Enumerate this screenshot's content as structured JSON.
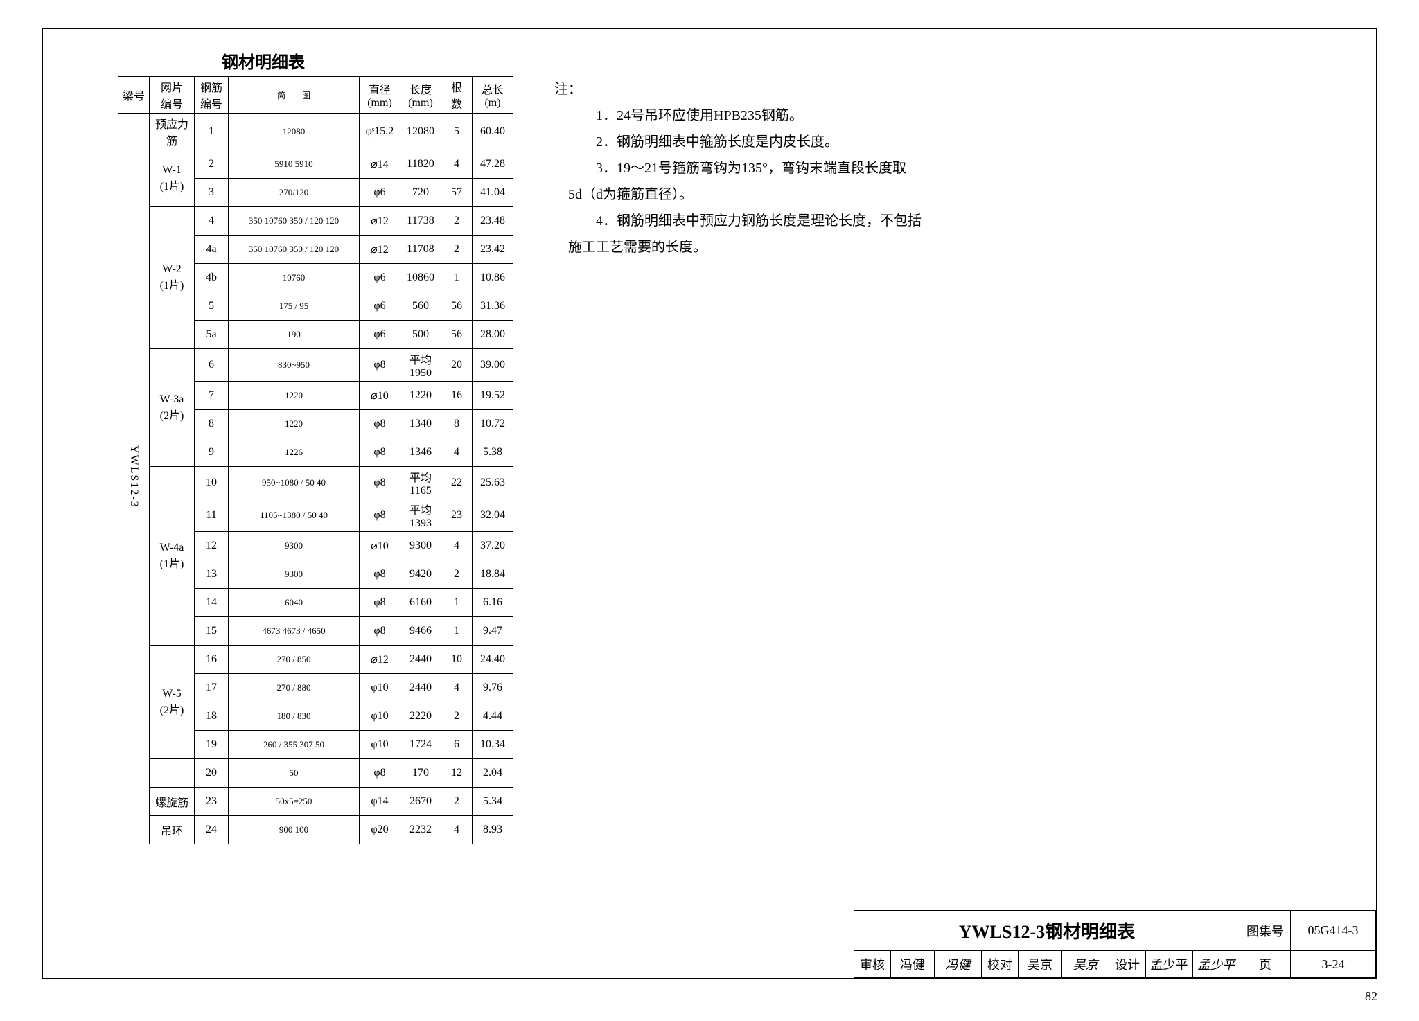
{
  "table_title": "钢材明细表",
  "beam_id": "YWLS12-3",
  "columns": {
    "beam": "梁号",
    "mesh": "网片\n编号",
    "bar": "钢筋\n编号",
    "sketch": "简　　图",
    "dia": "直径\n(mm)",
    "len": "长度\n(mm)",
    "qty": "根\n数",
    "total": "总长\n(m)"
  },
  "rows": [
    {
      "mesh": "预应力筋",
      "bar": "1",
      "sketch": "12080",
      "dia": "φˢ15.2",
      "len": "12080",
      "qty": "5",
      "total": "60.40"
    },
    {
      "mesh": "W-1\n(1片)",
      "mesh_rowspan": 2,
      "bar": "2",
      "sketch": "5910  5910",
      "dia": "⌀14",
      "len": "11820",
      "qty": "4",
      "total": "47.28"
    },
    {
      "bar": "3",
      "sketch": "270/120",
      "dia": "φ6",
      "len": "720",
      "qty": "57",
      "total": "41.04"
    },
    {
      "mesh": "W-2\n(1片)",
      "mesh_rowspan": 5,
      "bar": "4",
      "sketch": "350 10760 350 / 120 120",
      "dia": "⌀12",
      "len": "11738",
      "qty": "2",
      "total": "23.48"
    },
    {
      "bar": "4a",
      "sketch": "350 10760 350 / 120 120",
      "dia": "⌀12",
      "len": "11708",
      "qty": "2",
      "total": "23.42"
    },
    {
      "bar": "4b",
      "sketch": "10760",
      "dia": "φ6",
      "len": "10860",
      "qty": "1",
      "total": "10.86"
    },
    {
      "bar": "5",
      "sketch": "175 / 95",
      "dia": "φ6",
      "len": "560",
      "qty": "56",
      "total": "31.36"
    },
    {
      "bar": "5a",
      "sketch": "190",
      "dia": "φ6",
      "len": "500",
      "qty": "56",
      "total": "28.00"
    },
    {
      "mesh": "W-3a\n(2片)",
      "mesh_rowspan": 4,
      "bar": "6",
      "sketch": "830~950",
      "dia": "φ8",
      "len": "平均\n1950",
      "qty": "20",
      "total": "39.00"
    },
    {
      "bar": "7",
      "sketch": "1220",
      "dia": "⌀10",
      "len": "1220",
      "qty": "16",
      "total": "19.52"
    },
    {
      "bar": "8",
      "sketch": "1220",
      "dia": "φ8",
      "len": "1340",
      "qty": "8",
      "total": "10.72"
    },
    {
      "bar": "9",
      "sketch": "1226",
      "dia": "φ8",
      "len": "1346",
      "qty": "4",
      "total": "5.38"
    },
    {
      "mesh": "W-4a\n(1片)",
      "mesh_rowspan": 6,
      "bar": "10",
      "sketch": "950~1080 / 50 40",
      "dia": "φ8",
      "len": "平均\n1165",
      "qty": "22",
      "total": "25.63"
    },
    {
      "bar": "11",
      "sketch": "1105~1380 / 50 40",
      "dia": "φ8",
      "len": "平均\n1393",
      "qty": "23",
      "total": "32.04"
    },
    {
      "bar": "12",
      "sketch": "9300",
      "dia": "⌀10",
      "len": "9300",
      "qty": "4",
      "total": "37.20"
    },
    {
      "bar": "13",
      "sketch": "9300",
      "dia": "φ8",
      "len": "9420",
      "qty": "2",
      "total": "18.84"
    },
    {
      "bar": "14",
      "sketch": "6040",
      "dia": "φ8",
      "len": "6160",
      "qty": "1",
      "total": "6.16"
    },
    {
      "bar": "15",
      "sketch": "4673 4673 / 4650",
      "dia": "φ8",
      "len": "9466",
      "qty": "1",
      "total": "9.47"
    },
    {
      "mesh": "W-5\n(2片)",
      "mesh_rowspan": 4,
      "bar": "16",
      "sketch": "270 / 850",
      "dia": "⌀12",
      "len": "2440",
      "qty": "10",
      "total": "24.40"
    },
    {
      "bar": "17",
      "sketch": "270 / 880",
      "dia": "φ10",
      "len": "2440",
      "qty": "4",
      "total": "9.76"
    },
    {
      "bar": "18",
      "sketch": "180 / 830",
      "dia": "φ10",
      "len": "2220",
      "qty": "2",
      "total": "4.44"
    },
    {
      "bar": "19",
      "sketch": "260 / 355 307 50",
      "dia": "φ10",
      "len": "1724",
      "qty": "6",
      "total": "10.34"
    },
    {
      "mesh": "",
      "bar": "20",
      "sketch": "50",
      "dia": "φ8",
      "len": "170",
      "qty": "12",
      "total": "2.04"
    },
    {
      "mesh": "螺旋筋",
      "bar": "23",
      "sketch": "50x5=250",
      "dia": "φ14",
      "len": "2670",
      "qty": "2",
      "total": "5.34"
    },
    {
      "mesh": "吊环",
      "bar": "24",
      "sketch": "900 100",
      "dia": "φ20",
      "len": "2232",
      "qty": "4",
      "total": "8.93"
    }
  ],
  "notes_label": "注：",
  "notes": [
    "1．24号吊环应使用HPB235钢筋。",
    "2．钢筋明细表中箍筋长度是内皮长度。",
    "3．19～21号箍筋弯钩为135°，弯钩末端直段长度取",
    "5d（d为箍筋直径）。",
    "4．钢筋明细表中预应力钢筋长度是理论长度，不包括",
    "施工工艺需要的长度。"
  ],
  "title_block": {
    "main_title": "YWLS12-3钢材明细表",
    "atlas_label": "图集号",
    "atlas_val": "05G414-3",
    "review_label": "审核",
    "review_name": "冯健",
    "review_sig": "冯健",
    "check_label": "校对",
    "check_name": "吴京",
    "check_sig": "吴京",
    "design_label": "设计",
    "design_name": "孟少平",
    "design_sig": "孟少平",
    "page_label": "页",
    "page_val": "3-24"
  },
  "page_number": "82"
}
